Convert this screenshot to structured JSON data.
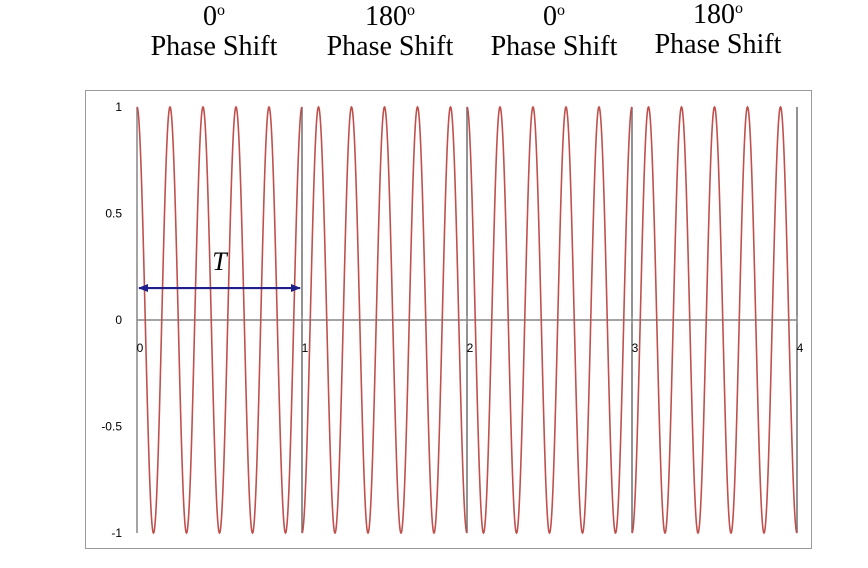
{
  "phase_labels": [
    {
      "degrees": "0",
      "degree_symbol": "o",
      "text": "Phase Shift"
    },
    {
      "degrees": "180",
      "degree_symbol": "o",
      "text": "Phase Shift"
    },
    {
      "degrees": "0",
      "degree_symbol": "o",
      "text": "Phase Shift"
    },
    {
      "degrees": "180",
      "degree_symbol": "o",
      "text": "Phase Shift"
    }
  ],
  "period_annotation": {
    "label": "T",
    "from": 0,
    "to": 1,
    "y": 0.15
  },
  "colors": {
    "wave": "#c0504d",
    "axis": "#868686",
    "arrow": "#1f1f8c",
    "frame": "#9a9a9a"
  },
  "chart_data": {
    "type": "line",
    "title": "",
    "xlabel": "",
    "ylabel": "",
    "xlim": [
      0,
      4
    ],
    "ylim": [
      -1,
      1
    ],
    "x_ticks": [
      0,
      1,
      2,
      3,
      4
    ],
    "x_tick_labels": [
      "0",
      "1",
      "2",
      "3",
      "4"
    ],
    "y_ticks": [
      1,
      0.5,
      0,
      -0.5,
      -1
    ],
    "y_tick_labels": [
      "1",
      "0.5",
      "0",
      "-0.5",
      "-1"
    ],
    "grid": false,
    "series": [
      {
        "function": "cos",
        "amplitude": 1,
        "cycles_per_unit": 5,
        "segments": [
          {
            "x_start": 0,
            "x_end": 1,
            "phase_deg": 0
          },
          {
            "x_start": 1,
            "x_end": 2,
            "phase_deg": 180
          },
          {
            "x_start": 2,
            "x_end": 3,
            "phase_deg": 0
          },
          {
            "x_start": 3,
            "x_end": 4,
            "phase_deg": 180
          }
        ]
      }
    ]
  }
}
